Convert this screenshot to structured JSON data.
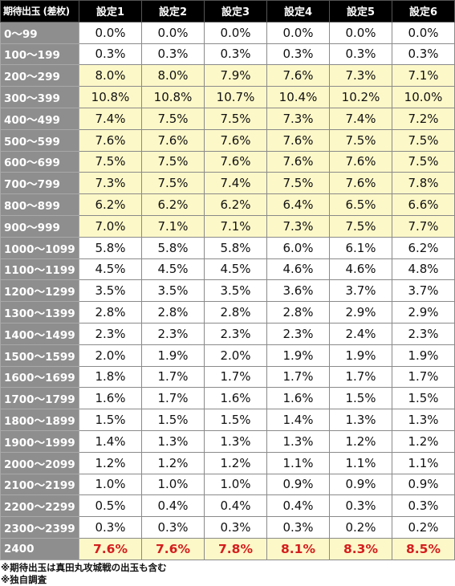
{
  "table": {
    "corner": "期待出玉 (差枚)",
    "settings": [
      "設定1",
      "設定2",
      "設定3",
      "設定4",
      "設定5",
      "設定6"
    ],
    "rows": [
      {
        "range": "0〜99",
        "values": [
          "0.0%",
          "0.0%",
          "0.0%",
          "0.0%",
          "0.0%",
          "0.0%"
        ],
        "highlight": false
      },
      {
        "range": "100〜199",
        "values": [
          "0.3%",
          "0.3%",
          "0.3%",
          "0.3%",
          "0.3%",
          "0.3%"
        ],
        "highlight": false
      },
      {
        "range": "200〜299",
        "values": [
          "8.0%",
          "8.0%",
          "7.9%",
          "7.6%",
          "7.3%",
          "7.1%"
        ],
        "highlight": true
      },
      {
        "range": "300〜399",
        "values": [
          "10.8%",
          "10.8%",
          "10.7%",
          "10.4%",
          "10.2%",
          "10.0%"
        ],
        "highlight": true
      },
      {
        "range": "400〜499",
        "values": [
          "7.4%",
          "7.5%",
          "7.5%",
          "7.3%",
          "7.4%",
          "7.2%"
        ],
        "highlight": true
      },
      {
        "range": "500〜599",
        "values": [
          "7.6%",
          "7.6%",
          "7.6%",
          "7.6%",
          "7.5%",
          "7.5%"
        ],
        "highlight": true
      },
      {
        "range": "600〜699",
        "values": [
          "7.5%",
          "7.5%",
          "7.6%",
          "7.6%",
          "7.6%",
          "7.5%"
        ],
        "highlight": true
      },
      {
        "range": "700〜799",
        "values": [
          "7.3%",
          "7.5%",
          "7.4%",
          "7.5%",
          "7.6%",
          "7.8%"
        ],
        "highlight": true
      },
      {
        "range": "800〜899",
        "values": [
          "6.2%",
          "6.2%",
          "6.2%",
          "6.4%",
          "6.5%",
          "6.6%"
        ],
        "highlight": true
      },
      {
        "range": "900〜999",
        "values": [
          "7.0%",
          "7.1%",
          "7.1%",
          "7.3%",
          "7.5%",
          "7.7%"
        ],
        "highlight": true
      },
      {
        "range": "1000〜1099",
        "values": [
          "5.8%",
          "5.8%",
          "5.8%",
          "6.0%",
          "6.1%",
          "6.2%"
        ],
        "highlight": false
      },
      {
        "range": "1100〜1199",
        "values": [
          "4.5%",
          "4.5%",
          "4.5%",
          "4.6%",
          "4.6%",
          "4.8%"
        ],
        "highlight": false
      },
      {
        "range": "1200〜1299",
        "values": [
          "3.5%",
          "3.5%",
          "3.5%",
          "3.6%",
          "3.7%",
          "3.7%"
        ],
        "highlight": false
      },
      {
        "range": "1300〜1399",
        "values": [
          "2.8%",
          "2.8%",
          "2.8%",
          "2.8%",
          "2.9%",
          "2.9%"
        ],
        "highlight": false
      },
      {
        "range": "1400〜1499",
        "values": [
          "2.3%",
          "2.3%",
          "2.3%",
          "2.3%",
          "2.4%",
          "2.3%"
        ],
        "highlight": false
      },
      {
        "range": "1500〜1599",
        "values": [
          "2.0%",
          "1.9%",
          "2.0%",
          "1.9%",
          "1.9%",
          "1.9%"
        ],
        "highlight": false
      },
      {
        "range": "1600〜1699",
        "values": [
          "1.8%",
          "1.7%",
          "1.7%",
          "1.7%",
          "1.7%",
          "1.7%"
        ],
        "highlight": false
      },
      {
        "range": "1700〜1799",
        "values": [
          "1.6%",
          "1.7%",
          "1.6%",
          "1.6%",
          "1.5%",
          "1.5%"
        ],
        "highlight": false
      },
      {
        "range": "1800〜1899",
        "values": [
          "1.5%",
          "1.5%",
          "1.5%",
          "1.4%",
          "1.3%",
          "1.3%"
        ],
        "highlight": false
      },
      {
        "range": "1900〜1999",
        "values": [
          "1.4%",
          "1.3%",
          "1.3%",
          "1.3%",
          "1.2%",
          "1.2%"
        ],
        "highlight": false
      },
      {
        "range": "2000〜2099",
        "values": [
          "1.2%",
          "1.2%",
          "1.2%",
          "1.1%",
          "1.1%",
          "1.1%"
        ],
        "highlight": false
      },
      {
        "range": "2100〜2199",
        "values": [
          "1.0%",
          "1.0%",
          "1.0%",
          "0.9%",
          "0.9%",
          "0.9%"
        ],
        "highlight": false
      },
      {
        "range": "2200〜2299",
        "values": [
          "0.5%",
          "0.4%",
          "0.4%",
          "0.4%",
          "0.3%",
          "0.3%"
        ],
        "highlight": false
      },
      {
        "range": "2300〜2399",
        "values": [
          "0.3%",
          "0.3%",
          "0.3%",
          "0.3%",
          "0.2%",
          "0.2%"
        ],
        "highlight": false
      }
    ],
    "last_row": {
      "range": "2400",
      "values": [
        "7.6%",
        "7.6%",
        "7.8%",
        "8.1%",
        "8.3%",
        "8.5%"
      ]
    }
  },
  "notes": [
    "※期待出玉は真田丸攻城戦の出玉も含む",
    "※独自調査"
  ],
  "colors": {
    "header_bg": "#000000",
    "row_label_bg": "#8e8e8e",
    "highlight_bg": "#fdf8c8",
    "emphasis_text": "#d41e1e"
  }
}
